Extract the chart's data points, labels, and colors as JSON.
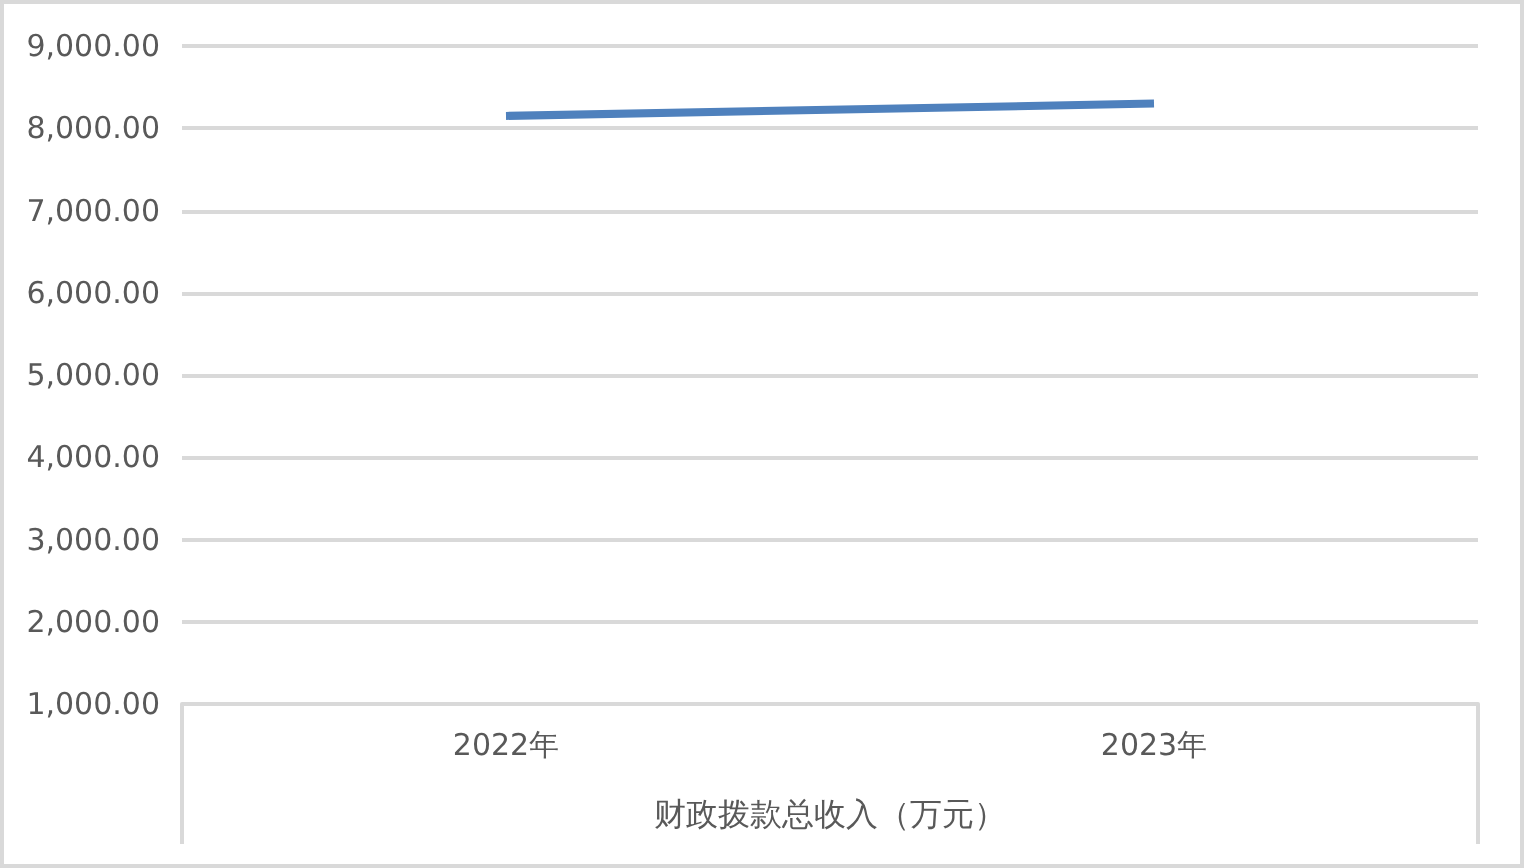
{
  "chart_data": {
    "type": "line",
    "xlabel": "财政拨款总收入（万元）",
    "categories": [
      "2022年",
      "2023年"
    ],
    "values": [
      8150,
      8300
    ],
    "color": "#4f81bd",
    "ylim": [
      1000,
      9000
    ],
    "yticks": [
      {
        "value": 1000,
        "label": "1,000.00"
      },
      {
        "value": 2000,
        "label": "2,000.00"
      },
      {
        "value": 3000,
        "label": "3,000.00"
      },
      {
        "value": 4000,
        "label": "4,000.00"
      },
      {
        "value": 5000,
        "label": "5,000.00"
      },
      {
        "value": 6000,
        "label": "6,000.00"
      },
      {
        "value": 7000,
        "label": "7,000.00"
      },
      {
        "value": 8000,
        "label": "8,000.00"
      },
      {
        "value": 9000,
        "label": "9,000.00"
      }
    ],
    "grid": "y",
    "marker": "none",
    "line_style": "solid"
  }
}
